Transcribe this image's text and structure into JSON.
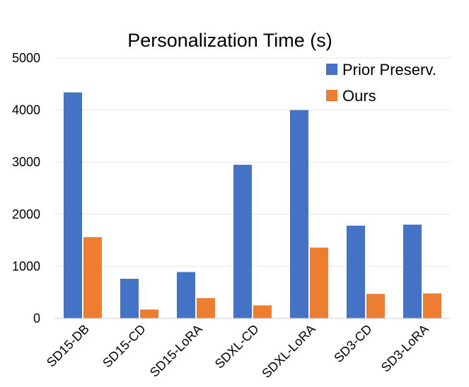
{
  "chart_data": {
    "type": "bar",
    "title": "Personalization Time (s)",
    "xlabel": "",
    "ylabel": "",
    "ylim": [
      0,
      5000
    ],
    "yticks": [
      0,
      1000,
      2000,
      3000,
      4000,
      5000
    ],
    "grid": true,
    "legend_position": "top-right",
    "categories": [
      "SD15-DB",
      "SD15-CD",
      "SD15-LoRA",
      "SDXL-CD",
      "SDXL-LoRA",
      "SD3-CD",
      "SD3-LoRA"
    ],
    "series": [
      {
        "name": "Prior Preserv.",
        "color": "#4472c4",
        "values": [
          4340,
          760,
          890,
          2950,
          4000,
          1780,
          1800
        ]
      },
      {
        "name": "Ours",
        "color": "#ed7d31",
        "values": [
          1560,
          170,
          390,
          250,
          1360,
          470,
          480
        ]
      }
    ]
  }
}
